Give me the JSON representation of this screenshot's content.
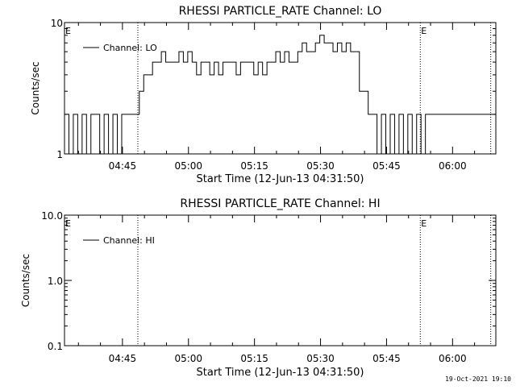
{
  "footer": {
    "timestamp": "19-Oct-2021 19:10"
  },
  "chart_data": [
    {
      "type": "line",
      "title": "RHESSI PARTICLE_RATE Channel: LO",
      "xlabel": "Start Time (12-Jun-13 04:31:50)",
      "ylabel": "Counts/sec",
      "yscale": "log",
      "ylim": [
        1,
        10
      ],
      "xlim_minutes_from_start": [
        0,
        98
      ],
      "y_tick_labels": [
        "1",
        "10"
      ],
      "x_tick_labels": [
        "04:45",
        "05:00",
        "05:15",
        "05:30",
        "05:45",
        "06:00"
      ],
      "legend": {
        "label": "Channel: LO",
        "placement": "top-left"
      },
      "markers": [
        {
          "label": "E",
          "time": "04:31:50"
        },
        {
          "label": "",
          "time": "04:48:30"
        },
        {
          "label": "E",
          "time": "05:52:40"
        },
        {
          "label": "",
          "time": "06:08:40"
        }
      ],
      "series": [
        {
          "name": "Channel: LO",
          "x_minutes_from_start": [
            0,
            1,
            2,
            3,
            4,
            5,
            6,
            7,
            8,
            9,
            10,
            11,
            12,
            13,
            14,
            15,
            16,
            17,
            18,
            19,
            20,
            21,
            22,
            23,
            24,
            25,
            26,
            27,
            28,
            29,
            30,
            31,
            32,
            33,
            34,
            35,
            36,
            37,
            38,
            39,
            40,
            41,
            42,
            43,
            44,
            45,
            46,
            47,
            48,
            49,
            50,
            51,
            52,
            53,
            54,
            55,
            56,
            57,
            58,
            59,
            60,
            61,
            62,
            63,
            64,
            65,
            66,
            67,
            68,
            69,
            70,
            71,
            72,
            73,
            74,
            75,
            76,
            77,
            78,
            79,
            80,
            81,
            82,
            83,
            84,
            85,
            86,
            87,
            88,
            89,
            90,
            91,
            92,
            93,
            94,
            95,
            96,
            97
          ],
          "values": [
            2,
            1,
            2,
            1,
            2,
            1,
            2,
            2,
            1,
            2,
            1,
            2,
            1,
            2,
            2,
            2,
            2,
            3,
            4,
            4,
            5,
            5,
            6,
            5,
            5,
            5,
            6,
            5,
            6,
            5,
            4,
            5,
            5,
            4,
            5,
            4,
            5,
            5,
            5,
            4,
            5,
            5,
            5,
            4,
            5,
            4,
            5,
            5,
            6,
            5,
            6,
            5,
            5,
            6,
            7,
            6,
            6,
            7,
            8,
            7,
            7,
            6,
            7,
            6,
            7,
            6,
            6,
            3,
            3,
            2,
            2,
            1,
            2,
            1,
            2,
            1,
            2,
            1,
            2,
            1,
            2,
            1,
            2,
            2,
            2,
            2,
            2,
            2,
            2,
            2,
            2,
            2,
            2,
            2,
            2,
            2,
            2,
            2
          ]
        }
      ]
    },
    {
      "type": "line",
      "title": "RHESSI PARTICLE_RATE Channel: HI",
      "xlabel": "Start Time (12-Jun-13 04:31:50)",
      "ylabel": "Counts/sec",
      "yscale": "log",
      "ylim": [
        0.1,
        10.0
      ],
      "y_tick_labels": [
        "0.1",
        "1.0",
        "10.0"
      ],
      "x_tick_labels": [
        "04:45",
        "05:00",
        "05:15",
        "05:30",
        "05:45",
        "06:00"
      ],
      "legend": {
        "label": "Channel: HI",
        "placement": "top-left"
      },
      "markers": [
        {
          "label": "E",
          "time": "04:31:50"
        },
        {
          "label": "",
          "time": "04:48:30"
        },
        {
          "label": "E",
          "time": "05:52:40"
        },
        {
          "label": "",
          "time": "06:08:40"
        }
      ],
      "series": [
        {
          "name": "Channel: HI",
          "x_minutes_from_start": [],
          "values": []
        }
      ]
    }
  ]
}
